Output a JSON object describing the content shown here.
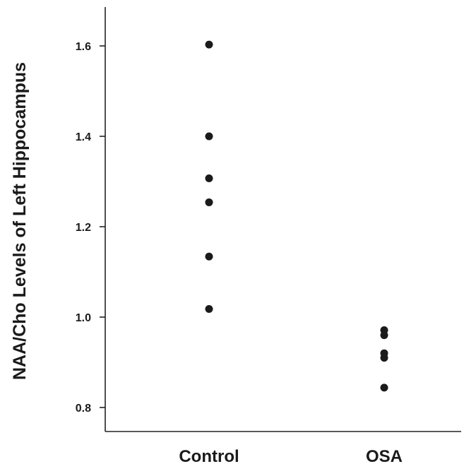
{
  "chart_data": {
    "type": "scatter",
    "title": "",
    "xlabel": "",
    "ylabel": "NAA/Cho Levels of Left Hippocampus",
    "categories": [
      "Control",
      "OSA"
    ],
    "ylim": [
      0.75,
      1.68
    ],
    "yticks": [
      0.8,
      1.0,
      1.2,
      1.4,
      1.6
    ],
    "ytick_labels": [
      "0.8",
      "1.0",
      "1.2",
      "1.4",
      "1.6"
    ],
    "grid": false,
    "legend": "none",
    "point_color": "#1a1a1a",
    "series": [
      {
        "category": "Control",
        "values": [
          1.603,
          1.4,
          1.307,
          1.254,
          1.134,
          1.018
        ]
      },
      {
        "category": "OSA",
        "values": [
          0.971,
          0.96,
          0.92,
          0.91,
          0.844
        ]
      }
    ]
  }
}
